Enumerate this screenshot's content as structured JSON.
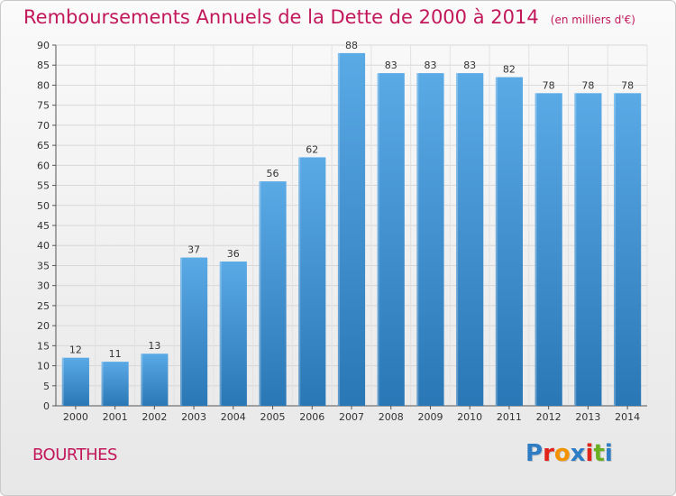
{
  "header": {
    "title": "Remboursements Annuels de la Dette de 2000 à 2014",
    "unit": "(en milliers d'€)"
  },
  "footer": {
    "place": "BOURTHES",
    "logo": "Proxiti"
  },
  "colors": {
    "accent": "#c2185b",
    "bar_top": "#5aaae6",
    "bar_bottom": "#2a77b6",
    "logo_letters": [
      "#2e7dc4",
      "#e2231a",
      "#f39200",
      "#2e7dc4",
      "#e2231a",
      "#6ab023",
      "#2e7dc4"
    ]
  },
  "chart_data": {
    "type": "bar",
    "title": "Remboursements Annuels de la Dette de 2000 à 2014",
    "subtitle": "(en milliers d'€)",
    "xlabel": "",
    "ylabel": "",
    "categories": [
      "2000",
      "2001",
      "2002",
      "2003",
      "2004",
      "2005",
      "2006",
      "2007",
      "2008",
      "2009",
      "2010",
      "2011",
      "2012",
      "2013",
      "2014"
    ],
    "values": [
      12,
      11,
      13,
      37,
      36,
      56,
      62,
      88,
      83,
      83,
      83,
      82,
      78,
      78,
      78
    ],
    "ylim": [
      0,
      90
    ],
    "yticks": [
      0,
      5,
      10,
      15,
      20,
      25,
      30,
      35,
      40,
      45,
      50,
      55,
      60,
      65,
      70,
      75,
      80,
      85,
      90
    ],
    "grid": true,
    "legend": "none"
  }
}
